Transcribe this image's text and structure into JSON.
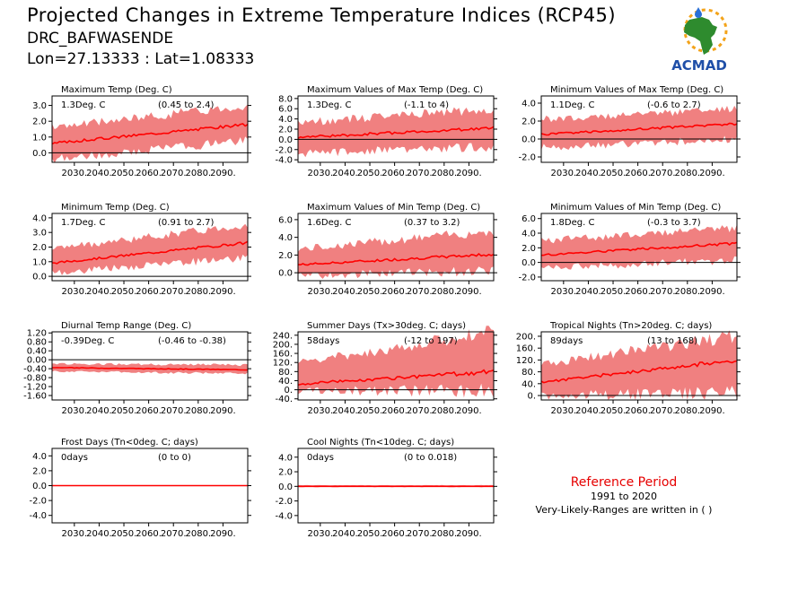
{
  "header": {
    "title": "Projected Changes in Extreme Temperature Indices (RCP45)",
    "station": "DRC_BAFWASENDE",
    "coords": "Lon=27.13333 : Lat=1.08333"
  },
  "logo": {
    "text": "ACMAD",
    "icon": "africa-map-logo"
  },
  "reference": {
    "title": "Reference Period",
    "years": "1991 to 2020",
    "note": "Very-Likely-Ranges are written in ( )"
  },
  "colors": {
    "band": "#f08080",
    "line": "#ff0000",
    "zero": "#000000"
  },
  "chart_data": [
    {
      "type": "area",
      "title": "Maximum Temp (Deg. C)",
      "value_label": "1.3Deg. C",
      "range_label": "(0.45 to 2.4)",
      "x": [
        2021,
        2100
      ],
      "xticks": [
        "2030.",
        "2040.",
        "2050.",
        "2060.",
        "2070.",
        "2080.",
        "2090."
      ],
      "ylim": [
        -0.6,
        3.6
      ],
      "yticks": [
        "0.0",
        "1.0",
        "2.0",
        "3.0"
      ],
      "mean_start": 0.6,
      "mean_end": 1.8,
      "band_low": [
        -0.3,
        0.9
      ],
      "band_high": [
        1.5,
        2.9
      ]
    },
    {
      "type": "area",
      "title": "Maximum Values of Max Temp (Deg. C)",
      "value_label": "1.3Deg. C",
      "range_label": "(-1.1 to 4)",
      "x": [
        2021,
        2100
      ],
      "xticks": [
        "2030.",
        "2040.",
        "2050.",
        "2060.",
        "2070.",
        "2080.",
        "2090."
      ],
      "ylim": [
        -4.5,
        8.5
      ],
      "yticks": [
        "-4.0",
        "-2.0",
        "0.0",
        "2.0",
        "4.0",
        "6.0",
        "8.0"
      ],
      "mean_start": 0.4,
      "mean_end": 2.2,
      "band_low": [
        -2.5,
        -1.0
      ],
      "band_high": [
        3.0,
        5.5
      ]
    },
    {
      "type": "area",
      "title": "Minimum Values of Max Temp (Deg. C)",
      "value_label": "1.1Deg. C",
      "range_label": "(-0.6 to 2.7)",
      "x": [
        2021,
        2100
      ],
      "xticks": [
        "2030.",
        "2040.",
        "2050.",
        "2060.",
        "2070.",
        "2080.",
        "2090."
      ],
      "ylim": [
        -2.6,
        4.8
      ],
      "yticks": [
        "-2.0",
        "0.0",
        "2.0",
        "4.0"
      ],
      "mean_start": 0.5,
      "mean_end": 1.7,
      "band_low": [
        -0.8,
        0.2
      ],
      "band_high": [
        2.0,
        3.2
      ]
    },
    {
      "type": "area",
      "title": "Minimum Temp (Deg. C)",
      "value_label": "1.7Deg. C",
      "range_label": "(0.91 to 2.7)",
      "x": [
        2021,
        2100
      ],
      "xticks": [
        "2030.",
        "2040.",
        "2050.",
        "2060.",
        "2070.",
        "2080.",
        "2090."
      ],
      "ylim": [
        -0.3,
        4.3
      ],
      "yticks": [
        "0.0",
        "1.0",
        "2.0",
        "3.0",
        "4.0"
      ],
      "mean_start": 0.9,
      "mean_end": 2.3,
      "band_low": [
        0.3,
        1.4
      ],
      "band_high": [
        1.8,
        3.4
      ]
    },
    {
      "type": "area",
      "title": "Maximum Values of Min Temp (Deg. C)",
      "value_label": "1.6Deg. C",
      "range_label": "(0.37 to 3.2)",
      "x": [
        2021,
        2100
      ],
      "xticks": [
        "2030.",
        "2040.",
        "2050.",
        "2060.",
        "2070.",
        "2080.",
        "2090."
      ],
      "ylim": [
        -0.9,
        6.7
      ],
      "yticks": [
        "0.0",
        "2.0",
        "4.0",
        "6.0"
      ],
      "mean_start": 0.9,
      "mean_end": 2.1,
      "band_low": [
        -0.2,
        0.5
      ],
      "band_high": [
        2.5,
        4.5
      ]
    },
    {
      "type": "area",
      "title": "Minimum Values of Min Temp (Deg. C)",
      "value_label": "1.8Deg. C",
      "range_label": "(-0.3 to 3.7)",
      "x": [
        2021,
        2100
      ],
      "xticks": [
        "2030.",
        "2040.",
        "2050.",
        "2060.",
        "2070.",
        "2080.",
        "2090."
      ],
      "ylim": [
        -2.5,
        6.7
      ],
      "yticks": [
        "-2.0",
        "0.0",
        "2.0",
        "4.0",
        "6.0"
      ],
      "mean_start": 1.0,
      "mean_end": 2.6,
      "band_low": [
        -0.5,
        0.5
      ],
      "band_high": [
        2.8,
        4.5
      ]
    },
    {
      "type": "area",
      "title": "Diurnal Temp Range (Deg. C)",
      "value_label": "-0.39Deg. C",
      "range_label": "(-0.46 to -0.38)",
      "x": [
        2021,
        2100
      ],
      "xticks": [
        "2030.",
        "2040.",
        "2050.",
        "2060.",
        "2070.",
        "2080.",
        "2090."
      ],
      "ylim": [
        -1.8,
        1.25
      ],
      "yticks": [
        "-1.60",
        "-1.20",
        "-0.80",
        "-0.40",
        "0.00",
        "0.40",
        "0.80",
        "1.20"
      ],
      "mean_start": -0.35,
      "mean_end": -0.45,
      "band_low": [
        -0.5,
        -0.6
      ],
      "band_high": [
        -0.2,
        -0.25
      ]
    },
    {
      "type": "area",
      "title": "Summer Days (Tx>30deg. C; days)",
      "value_label": "58days",
      "range_label": "(-12 to 197)",
      "x": [
        2021,
        2100
      ],
      "xticks": [
        "2030.",
        "2040.",
        "2050.",
        "2060.",
        "2070.",
        "2080.",
        "2090."
      ],
      "ylim": [
        -45,
        255
      ],
      "yticks": [
        "-40.",
        "0.",
        "40.",
        "80.",
        "120.",
        "160.",
        "200.",
        "240."
      ],
      "mean_start": 25,
      "mean_end": 80,
      "band_low": [
        0,
        10
      ],
      "band_high": [
        110,
        240
      ]
    },
    {
      "type": "area",
      "title": "Tropical Nights (Tn>20deg. C; days)",
      "value_label": "89days",
      "range_label": "(13 to 168)",
      "x": [
        2021,
        2100
      ],
      "xticks": [
        "2030.",
        "2040.",
        "2050.",
        "2060.",
        "2070.",
        "2080.",
        "2090."
      ],
      "ylim": [
        -15,
        215
      ],
      "yticks": [
        "0.",
        "40.",
        "80.",
        "120.",
        "160.",
        "200."
      ],
      "mean_start": 45,
      "mean_end": 120,
      "band_low": [
        5,
        20
      ],
      "band_high": [
        100,
        190
      ]
    },
    {
      "type": "area",
      "title": "Frost Days (Tn<0deg. C; days)",
      "value_label": "0days",
      "range_label": "(0 to 0)",
      "x": [
        2021,
        2100
      ],
      "xticks": [
        "2030.",
        "2040.",
        "2050.",
        "2060.",
        "2070.",
        "2080.",
        "2090."
      ],
      "ylim": [
        -5,
        5
      ],
      "yticks": [
        "-4.0",
        "-2.0",
        "0.0",
        "2.0",
        "4.0"
      ],
      "mean_start": 0,
      "mean_end": 0,
      "band_low": [
        0,
        0
      ],
      "band_high": [
        0.05,
        0.05
      ]
    },
    {
      "type": "area",
      "title": "Cool Nights (Tn<10deg. C; days)",
      "value_label": "0days",
      "range_label": "(0 to 0.018)",
      "x": [
        2021,
        2100
      ],
      "xticks": [
        "2030.",
        "2040.",
        "2050.",
        "2060.",
        "2070.",
        "2080.",
        "2090."
      ],
      "ylim": [
        -5,
        5.2
      ],
      "yticks": [
        "-4.0",
        "-2.0",
        "0.0",
        "2.0",
        "4.0"
      ],
      "mean_start": 0,
      "mean_end": 0,
      "band_low": [
        0,
        0
      ],
      "band_high": [
        0.15,
        0.15
      ]
    }
  ]
}
